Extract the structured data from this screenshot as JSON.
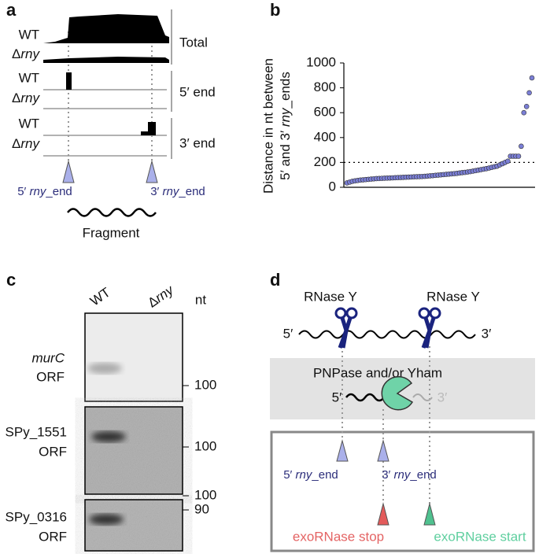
{
  "panel_labels": [
    "a",
    "b",
    "c",
    "d"
  ],
  "panel_a": {
    "rows": [
      {
        "wt": "WT",
        "mutant": [
          "Δ",
          "rny"
        ],
        "group": "Total"
      },
      {
        "wt": "WT",
        "mutant": [
          "Δ",
          "rny"
        ],
        "group": "5′ end"
      },
      {
        "wt": "WT",
        "mutant": [
          "Δ",
          "rny"
        ],
        "group": "3′ end"
      }
    ],
    "end_labels": [
      [
        "5′ ",
        "rny",
        "_end"
      ],
      [
        "3′ ",
        "rny",
        "_end"
      ]
    ],
    "fragment": "Fragment"
  },
  "chart_data": {
    "type": "scatter",
    "y_label": [
      "Distance in nt between",
      "5′ and 3′ ",
      "rny",
      "_ends"
    ],
    "values": [
      35,
      42,
      48,
      52,
      55,
      58,
      60,
      62,
      64,
      66,
      68,
      70,
      71,
      72,
      73,
      74,
      75,
      76,
      77,
      78,
      79,
      80,
      81,
      82,
      83,
      84,
      85,
      86,
      87,
      88,
      90,
      92,
      94,
      96,
      98,
      100,
      102,
      104,
      106,
      108,
      110,
      112,
      115,
      118,
      120,
      123,
      126,
      130,
      134,
      138,
      142,
      146,
      150,
      155,
      160,
      165,
      170,
      180,
      190,
      200,
      210,
      250,
      250,
      250,
      250,
      330,
      600,
      650,
      760,
      880
    ],
    "color": "#7b7fd6",
    "ylim": [
      0,
      1000
    ],
    "yticks": [
      0,
      200,
      400,
      600,
      800,
      1000
    ],
    "threshold": 200
  },
  "panel_c": {
    "columns": {
      "wt": "WT",
      "mutant": [
        "Δ",
        "rny"
      ]
    },
    "unit": "nt",
    "gels": [
      {
        "gene": "murC",
        "italic": true,
        "orf": "ORF",
        "markers": [
          "100"
        ]
      },
      {
        "gene": "SPy_1551",
        "italic": false,
        "orf": "ORF",
        "markers": [
          "100"
        ]
      },
      {
        "gene": "SPy_0316",
        "italic": false,
        "orf": "ORF",
        "markers": [
          "100",
          "90"
        ]
      }
    ]
  },
  "panel_d": {
    "enzyme_labels": [
      "RNase Y",
      "RNase Y"
    ],
    "strand_ends": [
      "5′",
      "3′"
    ],
    "box_title": "PNPase and/or Yham",
    "inner_ends": [
      "5′",
      "3′"
    ],
    "end_labels": [
      [
        "5′ ",
        "rny",
        "_end"
      ],
      [
        "3′ ",
        "rny",
        "_end"
      ]
    ],
    "exo_labels": [
      "exoRNase stop",
      "exoRNase start"
    ]
  }
}
